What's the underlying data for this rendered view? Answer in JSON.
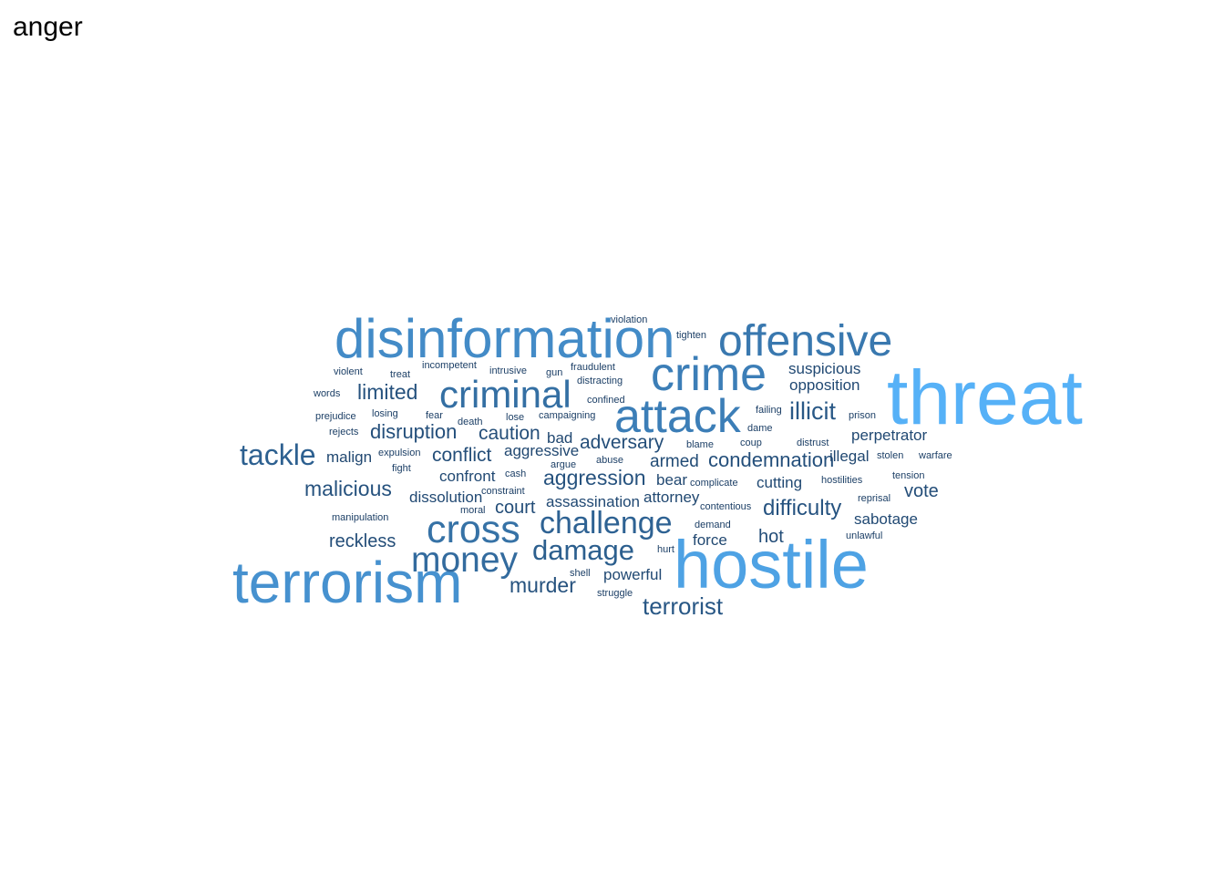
{
  "title": "anger",
  "palette": {
    "dark": "#1c3f66",
    "light": "#56b1f7"
  },
  "chart_data": {
    "type": "wordcloud",
    "title": "anger",
    "words": [
      {
        "text": "threat",
        "freq": 100
      },
      {
        "text": "hostile",
        "freq": 88
      },
      {
        "text": "terrorism",
        "freq": 75
      },
      {
        "text": "disinformation",
        "freq": 70
      },
      {
        "text": "crime",
        "freq": 60
      },
      {
        "text": "attack",
        "freq": 60
      },
      {
        "text": "offensive",
        "freq": 55
      },
      {
        "text": "cross",
        "freq": 50
      },
      {
        "text": "criminal",
        "freq": 48
      },
      {
        "text": "money",
        "freq": 45
      },
      {
        "text": "challenge",
        "freq": 38
      },
      {
        "text": "tackle",
        "freq": 36
      },
      {
        "text": "damage",
        "freq": 35
      },
      {
        "text": "illicit",
        "freq": 30
      },
      {
        "text": "terrorist",
        "freq": 29
      },
      {
        "text": "difficulty",
        "freq": 26
      },
      {
        "text": "aggression",
        "freq": 25
      },
      {
        "text": "murder",
        "freq": 25
      },
      {
        "text": "malicious",
        "freq": 25
      },
      {
        "text": "limited",
        "freq": 25
      },
      {
        "text": "disruption",
        "freq": 23
      },
      {
        "text": "condemnation",
        "freq": 23
      },
      {
        "text": "adversary",
        "freq": 22
      },
      {
        "text": "conflict",
        "freq": 22
      },
      {
        "text": "caution",
        "freq": 22
      },
      {
        "text": "reckless",
        "freq": 21
      },
      {
        "text": "court",
        "freq": 21
      },
      {
        "text": "vote",
        "freq": 21
      },
      {
        "text": "hot",
        "freq": 21
      },
      {
        "text": "armed",
        "freq": 20
      },
      {
        "text": "suspicious",
        "freq": 18
      },
      {
        "text": "opposition",
        "freq": 18
      },
      {
        "text": "perpetrator",
        "freq": 18
      },
      {
        "text": "sabotage",
        "freq": 18
      },
      {
        "text": "cutting",
        "freq": 18
      },
      {
        "text": "confront",
        "freq": 18
      },
      {
        "text": "dissolution",
        "freq": 18
      },
      {
        "text": "assassination",
        "freq": 18
      },
      {
        "text": "powerful",
        "freq": 18
      },
      {
        "text": "aggressive",
        "freq": 17
      },
      {
        "text": "bad",
        "freq": 17
      },
      {
        "text": "bear",
        "freq": 17
      },
      {
        "text": "attorney",
        "freq": 17
      },
      {
        "text": "force",
        "freq": 17
      },
      {
        "text": "illegal",
        "freq": 17
      },
      {
        "text": "malign",
        "freq": 17
      },
      {
        "text": "violation",
        "freq": 10
      },
      {
        "text": "tighten",
        "freq": 10
      },
      {
        "text": "violent",
        "freq": 10
      },
      {
        "text": "treat",
        "freq": 10
      },
      {
        "text": "incompetent",
        "freq": 10
      },
      {
        "text": "intrusive",
        "freq": 10
      },
      {
        "text": "gun",
        "freq": 10
      },
      {
        "text": "fraudulent",
        "freq": 10
      },
      {
        "text": "distracting",
        "freq": 10
      },
      {
        "text": "words",
        "freq": 10
      },
      {
        "text": "confined",
        "freq": 10
      },
      {
        "text": "prejudice",
        "freq": 10
      },
      {
        "text": "losing",
        "freq": 10
      },
      {
        "text": "fear",
        "freq": 10
      },
      {
        "text": "death",
        "freq": 10
      },
      {
        "text": "lose",
        "freq": 10
      },
      {
        "text": "campaigning",
        "freq": 10
      },
      {
        "text": "failing",
        "freq": 10
      },
      {
        "text": "prison",
        "freq": 10
      },
      {
        "text": "rejects",
        "freq": 10
      },
      {
        "text": "dame",
        "freq": 10
      },
      {
        "text": "blame",
        "freq": 10
      },
      {
        "text": "coup",
        "freq": 10
      },
      {
        "text": "distrust",
        "freq": 10
      },
      {
        "text": "expulsion",
        "freq": 10
      },
      {
        "text": "abuse",
        "freq": 10
      },
      {
        "text": "stolen",
        "freq": 10
      },
      {
        "text": "warfare",
        "freq": 10
      },
      {
        "text": "fight",
        "freq": 10
      },
      {
        "text": "argue",
        "freq": 10
      },
      {
        "text": "cash",
        "freq": 10
      },
      {
        "text": "complicate",
        "freq": 10
      },
      {
        "text": "hostilities",
        "freq": 10
      },
      {
        "text": "tension",
        "freq": 10
      },
      {
        "text": "constraint",
        "freq": 10
      },
      {
        "text": "reprisal",
        "freq": 10
      },
      {
        "text": "moral",
        "freq": 10
      },
      {
        "text": "contentious",
        "freq": 10
      },
      {
        "text": "manipulation",
        "freq": 10
      },
      {
        "text": "demand",
        "freq": 10
      },
      {
        "text": "unlawful",
        "freq": 10
      },
      {
        "text": "hurt",
        "freq": 10
      },
      {
        "text": "shell",
        "freq": 10
      },
      {
        "text": "struggle",
        "freq": 10
      }
    ]
  }
}
